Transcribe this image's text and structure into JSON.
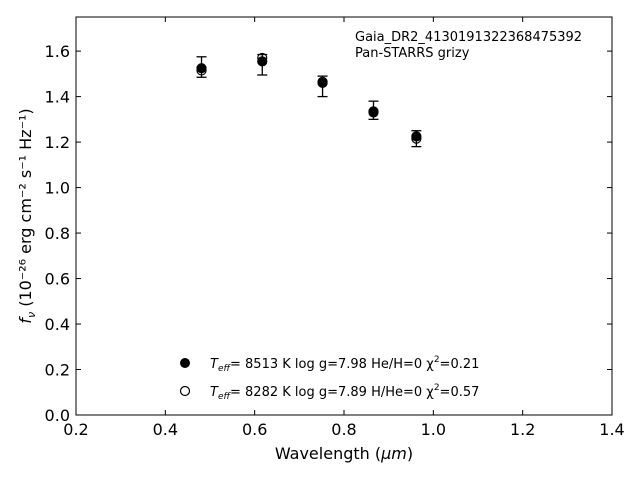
{
  "chart_data": {
    "type": "scatter",
    "title": "",
    "xlabel": "Wavelength (",
    "xlabel_unit": "μm",
    "xlabel_close": ")",
    "ylabel": "f",
    "ylabel_sub": "ν",
    "ylabel_units": " (10⁻²⁶ erg cm⁻² s⁻¹ Hz⁻¹)",
    "xlim": [
      0.2,
      1.4
    ],
    "ylim": [
      0.0,
      1.75
    ],
    "xticks": [
      0.2,
      0.4,
      0.6,
      0.8,
      1.0,
      1.2,
      1.4
    ],
    "yticks": [
      0.0,
      0.2,
      0.4,
      0.6,
      0.8,
      1.0,
      1.2,
      1.4,
      1.6
    ],
    "xtick_labels": [
      "0.2",
      "0.4",
      "0.6",
      "0.8",
      "1.0",
      "1.2",
      "1.4"
    ],
    "ytick_labels": [
      "0.0",
      "0.2",
      "0.4",
      "0.6",
      "0.8",
      "1.0",
      "1.2",
      "1.4",
      "1.6"
    ],
    "grid": false,
    "annotation": [
      "Gaia_DR2_4130191322368475392",
      "Pan-STARRS grizy"
    ],
    "observed": {
      "x": [
        0.481,
        0.617,
        0.752,
        0.866,
        0.962
      ],
      "y": [
        1.53,
        1.54,
        1.445,
        1.34,
        1.215
      ],
      "yerr": [
        0.045,
        0.045,
        0.045,
        0.04,
        0.035
      ]
    },
    "series": [
      {
        "name": "Teff= 8513 K log g=7.98 He/H=0 χ2=0.21",
        "marker": "filled-circle",
        "x": [
          0.481,
          0.617,
          0.752,
          0.866,
          0.962
        ],
        "y": [
          1.525,
          1.555,
          1.46,
          1.33,
          1.225
        ]
      },
      {
        "name": "Teff= 8282 K log g=7.89 H/He=0 χ2=0.57",
        "marker": "open-circle",
        "x": [
          0.481,
          0.617,
          0.752,
          0.866,
          0.962
        ],
        "y": [
          1.515,
          1.57,
          1.465,
          1.335,
          1.215
        ]
      }
    ],
    "legend": {
      "placement": "lower-center",
      "entries": [
        {
          "marker": "filled-circle",
          "teff": "T",
          "teff_sub": "eff",
          "text": "=  8513 K  log g=7.98  He/H=0  χ",
          "chi_sup": "2",
          "chi_val": "=0.21"
        },
        {
          "marker": "open-circle",
          "teff": "T",
          "teff_sub": "eff",
          "text": "=  8282 K  log g=7.89  H/He=0  χ",
          "chi_sup": "2",
          "chi_val": "=0.57"
        }
      ]
    },
    "colors": {
      "marker": "#000000",
      "axes": "#000000",
      "background": "#ffffff"
    }
  }
}
